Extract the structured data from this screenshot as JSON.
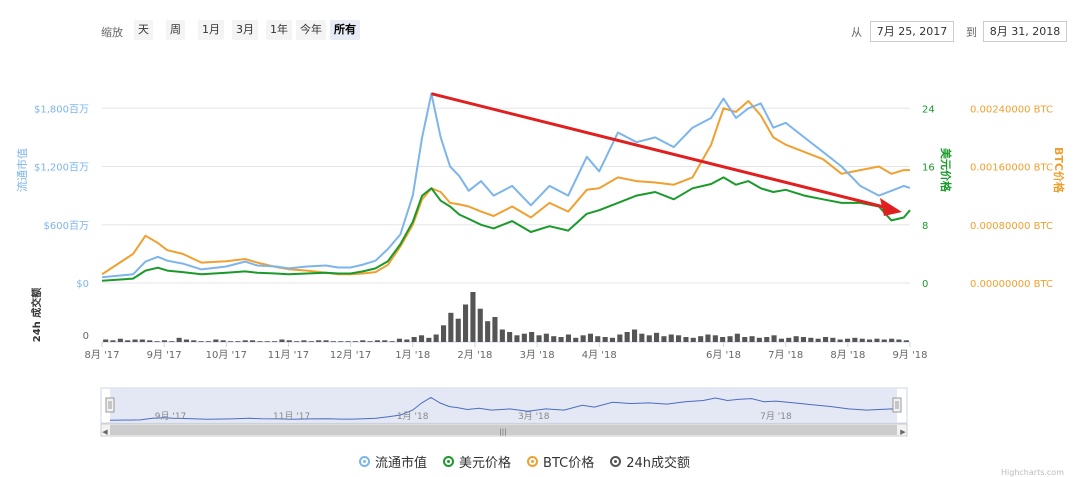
{
  "zoom": {
    "label": "缩放",
    "buttons": [
      "天",
      "周",
      "1月",
      "3月",
      "1年",
      "今年",
      "所有"
    ],
    "active": "所有"
  },
  "range": {
    "from_label": "从",
    "from_value": "7月 25, 2017",
    "to_label": "到",
    "to_value": "8月 31, 2018"
  },
  "colors": {
    "market_cap": "#7cb5ec",
    "usd_price": "#1a9a2a",
    "btc_price": "#f0a030",
    "volume": "#555555",
    "arrow": "#e02020"
  },
  "chart_data": {
    "type": "line",
    "x_ticks": [
      "8月 '17",
      "9月 '17",
      "10月 '17",
      "11月 '17",
      "12月 '17",
      "1月 '18",
      "2月 '18",
      "3月 '18",
      "4月 '18",
      "6月 '18",
      "7月 '18",
      "8月 '18",
      "9月 '18"
    ],
    "x_tick_pos": [
      0,
      1.0,
      2.0,
      3.0,
      4.0,
      5.0,
      6.0,
      7.0,
      8.0,
      10.0,
      11.0,
      12.0,
      13.0
    ],
    "x": [
      0,
      0.5,
      0.7,
      0.9,
      1.05,
      1.3,
      1.6,
      2.0,
      2.3,
      2.5,
      2.8,
      3.0,
      3.3,
      3.6,
      3.8,
      4.0,
      4.2,
      4.4,
      4.6,
      4.8,
      5.0,
      5.15,
      5.3,
      5.45,
      5.6,
      5.75,
      5.9,
      6.1,
      6.3,
      6.6,
      6.9,
      7.2,
      7.5,
      7.8,
      8.0,
      8.3,
      8.6,
      8.9,
      9.2,
      9.5,
      9.8,
      10.0,
      10.2,
      10.4,
      10.6,
      10.8,
      11.0,
      11.3,
      11.6,
      11.9,
      12.2,
      12.5,
      12.7,
      12.9,
      13.0
    ],
    "series": [
      {
        "name": "流通市值",
        "axis": "left",
        "unit": "百万",
        "values": [
          60,
          90,
          220,
          270,
          230,
          200,
          140,
          170,
          220,
          180,
          170,
          150,
          170,
          180,
          160,
          160,
          190,
          230,
          350,
          500,
          900,
          1500,
          1950,
          1500,
          1200,
          1100,
          950,
          1050,
          900,
          1000,
          800,
          1000,
          900,
          1300,
          1150,
          1550,
          1450,
          1500,
          1400,
          1600,
          1700,
          1900,
          1700,
          1800,
          1850,
          1600,
          1650,
          1500,
          1350,
          1200,
          1000,
          900,
          950,
          1000,
          980
        ]
      },
      {
        "name": "美元价格",
        "axis": "left2",
        "values": [
          0.3,
          0.6,
          1.7,
          2.1,
          1.7,
          1.5,
          1.2,
          1.4,
          1.6,
          1.4,
          1.3,
          1.2,
          1.3,
          1.4,
          1.3,
          1.3,
          1.6,
          2.0,
          3.0,
          5.3,
          8.4,
          12.0,
          13.0,
          11.3,
          10.5,
          9.4,
          8.8,
          8.0,
          7.5,
          8.5,
          7.0,
          7.8,
          7.2,
          9.5,
          10.0,
          11.0,
          12.0,
          12.5,
          11.5,
          13.0,
          13.6,
          14.5,
          13.5,
          14.0,
          13.0,
          12.5,
          12.8,
          12.0,
          11.5,
          11.0,
          11.0,
          10.5,
          8.6,
          9.0,
          10.0
        ]
      },
      {
        "name": "BTC价格",
        "axis": "right",
        "values": [
          0.00012,
          0.0004,
          0.00065,
          0.00055,
          0.00045,
          0.0004,
          0.00028,
          0.0003,
          0.00033,
          0.00028,
          0.00022,
          0.00019,
          0.00017,
          0.00014,
          0.00012,
          0.00012,
          0.00013,
          0.00015,
          0.00025,
          0.0005,
          0.0008,
          0.00115,
          0.0013,
          0.00125,
          0.0011,
          0.00108,
          0.00105,
          0.00098,
          0.00092,
          0.00105,
          0.0009,
          0.0011,
          0.00098,
          0.00128,
          0.0013,
          0.00145,
          0.0014,
          0.00138,
          0.00135,
          0.00145,
          0.0019,
          0.0024,
          0.00235,
          0.0025,
          0.0023,
          0.002,
          0.0019,
          0.0018,
          0.0017,
          0.0015,
          0.00155,
          0.0016,
          0.0015,
          0.00155,
          0.00155
        ]
      }
    ],
    "left_axis": {
      "ticks": [
        "$0",
        "$600百万",
        "$1,200百万",
        "$1,800百万"
      ],
      "values": [
        0,
        600,
        1200,
        1800
      ],
      "range": [
        0,
        2400
      ],
      "title": "流通市值"
    },
    "right_axis_price": {
      "ticks": [
        "0",
        "8",
        "16",
        "24"
      ],
      "values": [
        0,
        8,
        16,
        24
      ],
      "range": [
        0,
        32
      ],
      "title": "美元价格"
    },
    "right_axis_btc": {
      "ticks": [
        "0.00000000 BTC",
        "0.00080000 BTC",
        "0.00160000 BTC",
        "0.00240000 BTC"
      ],
      "values": [
        0,
        0.0008,
        0.0016,
        0.0024
      ],
      "range": [
        0,
        0.0032
      ],
      "title": "BTC价格"
    },
    "volume": {
      "title": "24h 成交额",
      "tick": "0",
      "values": [
        3,
        2,
        4,
        2,
        3,
        3,
        2,
        1,
        2,
        1,
        5,
        3,
        2,
        1,
        1,
        3,
        2,
        1,
        1,
        2,
        2,
        1,
        1,
        1,
        3,
        2,
        1,
        2,
        1,
        2,
        2,
        1,
        1,
        1,
        1,
        2,
        1,
        2,
        2,
        1,
        4,
        3,
        6,
        8,
        5,
        9,
        20,
        35,
        28,
        45,
        60,
        40,
        25,
        30,
        15,
        12,
        8,
        10,
        12,
        8,
        10,
        7,
        6,
        9,
        5,
        8,
        10,
        7,
        6,
        5,
        9,
        12,
        15,
        10,
        8,
        11,
        7,
        9,
        8,
        6,
        5,
        7,
        9,
        8,
        6,
        7,
        10,
        6,
        7,
        5,
        6,
        8,
        4,
        5,
        7,
        6,
        5,
        4,
        6,
        5,
        3,
        4,
        5,
        4,
        3,
        4,
        3,
        4,
        3,
        2
      ]
    },
    "navigator": {
      "ticks": [
        "9月 '17",
        "11月 '17",
        "1月 '18",
        "3月 '18",
        "7月 '18"
      ],
      "tick_pos": [
        1.0,
        3.0,
        5.0,
        7.0,
        11.0
      ]
    },
    "legend": [
      "流通市值",
      "美元价格",
      "BTC价格",
      "24h成交额"
    ],
    "annotation": "trend arrow"
  },
  "credits": "Highcharts.com"
}
